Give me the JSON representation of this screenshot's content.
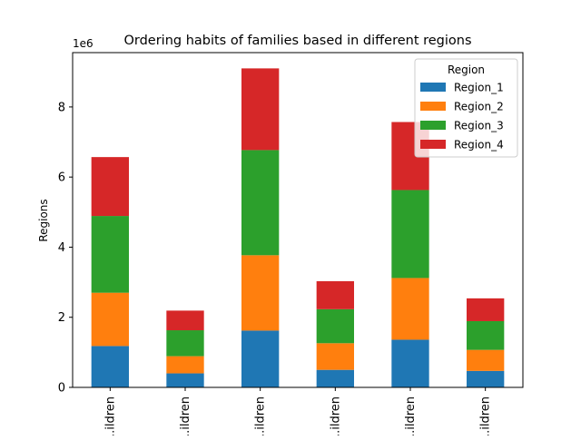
{
  "chart_data": {
    "type": "bar",
    "stacked": true,
    "title": "Ordering habits of families based in different regions",
    "xlabel": "",
    "ylabel": "Regions",
    "y_offset_text": "1e6",
    "ylim": [
      0,
      9550000
    ],
    "yticks": [
      0,
      2000000,
      4000000,
      6000000,
      8000000
    ],
    "ytick_labels": [
      "0",
      "2",
      "4",
      "6",
      "8"
    ],
    "categories": [
      "...ildren",
      "...ildren",
      "...ildren",
      "...ildren",
      "...ildren",
      "...ildren"
    ],
    "legend": {
      "title": "Region",
      "placement": "top-right"
    },
    "grid": false,
    "series": [
      {
        "name": "Region_1",
        "color": "#1f77b4",
        "values": [
          1180000,
          400000,
          1620000,
          500000,
          1360000,
          470000
        ]
      },
      {
        "name": "Region_2",
        "color": "#ff7f0e",
        "values": [
          1520000,
          490000,
          2150000,
          760000,
          1760000,
          600000
        ]
      },
      {
        "name": "Region_3",
        "color": "#2ca02c",
        "values": [
          2190000,
          740000,
          3000000,
          970000,
          2510000,
          820000
        ]
      },
      {
        "name": "Region_4",
        "color": "#d62728",
        "values": [
          1680000,
          560000,
          2330000,
          800000,
          1940000,
          650000
        ]
      }
    ]
  }
}
